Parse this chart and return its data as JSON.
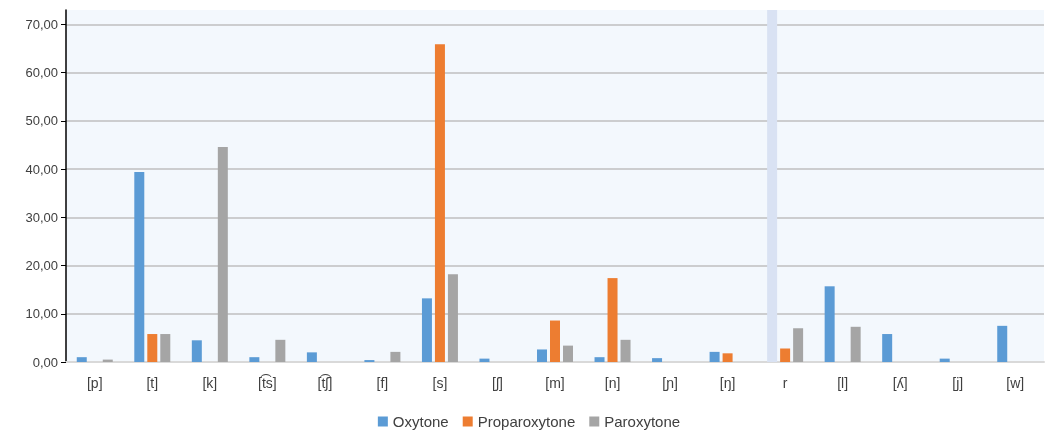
{
  "chart_data": {
    "type": "bar",
    "categories": [
      "[p]",
      "[t]",
      "[k]",
      "[t͡s]",
      "[t͡ʃ]",
      "[f]",
      "[s]",
      "[ʃ]",
      "[m]",
      "[n]",
      "[ɲ]",
      "[ŋ]",
      "r",
      "[l]",
      "[ʎ]",
      "[j]",
      "[w]"
    ],
    "series": [
      {
        "name": "Oxytone",
        "color": "#5b9bd5",
        "colors": [
          "#5b9bd5",
          "#5b9bd5",
          "#5b9bd5",
          "#5b9bd5",
          "#5b9bd5",
          "#5b9bd5",
          "#5b9bd5",
          "#5b9bd5",
          "#5b9bd5",
          "#5b9bd5",
          "#5b9bd5",
          "#5b9bd5",
          "#d9e2f3",
          "#5b9bd5",
          "#5b9bd5",
          "#5b9bd5",
          "#5b9bd5"
        ],
        "values": [
          1.0,
          39.4,
          4.5,
          1.0,
          2.0,
          0.4,
          13.2,
          0.7,
          2.6,
          1.0,
          0.8,
          2.1,
          73,
          15.7,
          5.8,
          0.7,
          7.5
        ]
      },
      {
        "name": "Proparoxytone",
        "color": "#ed7d31",
        "values": [
          0,
          5.8,
          0,
          0,
          0,
          0,
          65.9,
          0,
          8.6,
          17.4,
          0,
          1.8,
          2.8,
          0,
          0,
          0,
          0
        ]
      },
      {
        "name": "Paroxytone",
        "color": "#a5a5a5",
        "values": [
          0.5,
          5.8,
          44.6,
          4.6,
          0,
          2.1,
          18.2,
          0,
          3.4,
          4.6,
          0,
          0,
          7.0,
          7.3,
          0,
          0,
          0
        ]
      }
    ],
    "ylim": [
      0,
      73
    ],
    "yticks": [
      {
        "value": 0,
        "label": "0,00"
      },
      {
        "value": 10,
        "label": "10,00"
      },
      {
        "value": 20,
        "label": "20,00"
      },
      {
        "value": 30,
        "label": "30,00"
      },
      {
        "value": 40,
        "label": "40,00"
      },
      {
        "value": 50,
        "label": "50,00"
      },
      {
        "value": 60,
        "label": "60,00"
      },
      {
        "value": 70,
        "label": "70,00"
      }
    ],
    "grid": "y",
    "legend": "bottom"
  }
}
